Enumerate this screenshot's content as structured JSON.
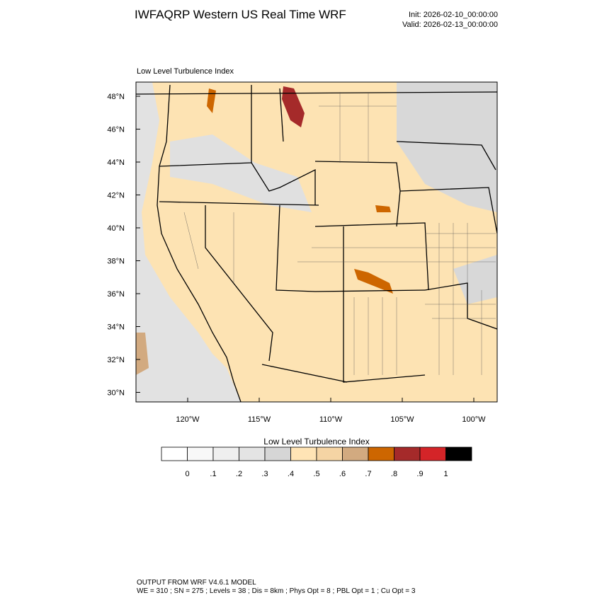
{
  "header": {
    "title": "IWFAQRP Western US Real Time WRF",
    "init": "Init: 2026-02-10_00:00:00",
    "valid": "Valid: 2026-02-13_00:00:00"
  },
  "map": {
    "field_title": "Low Level Turbulence Index",
    "lat_labels": [
      "48°N",
      "46°N",
      "44°N",
      "42°N",
      "40°N",
      "38°N",
      "36°N",
      "34°N",
      "32°N",
      "30°N"
    ],
    "lon_labels": [
      "120°W",
      "115°W",
      "110°W",
      "105°W",
      "100°W"
    ]
  },
  "colorbar": {
    "title": "Low Level Turbulence Index",
    "labels": [
      "0",
      ".1",
      ".2",
      ".3",
      ".4",
      ".5",
      ".6",
      ".7",
      ".8",
      ".9",
      "1"
    ],
    "colors": [
      "#ffffff",
      "#f8f8f8",
      "#efefef",
      "#e4e4e4",
      "#d6d6d6",
      "#ffe4b5",
      "#f5d4a4",
      "#d2aa80",
      "#cd6600",
      "#a52a2a",
      "#d42428",
      "#000000"
    ]
  },
  "footer": {
    "line1": "OUTPUT FROM WRF V4.6.1 MODEL",
    "line2": "WE = 310 ; SN = 275 ; Levels = 38 ; Dis = 8km ; Phys Opt = 8 ; PBL Opt = 1 ; Cu Opt = 3"
  }
}
